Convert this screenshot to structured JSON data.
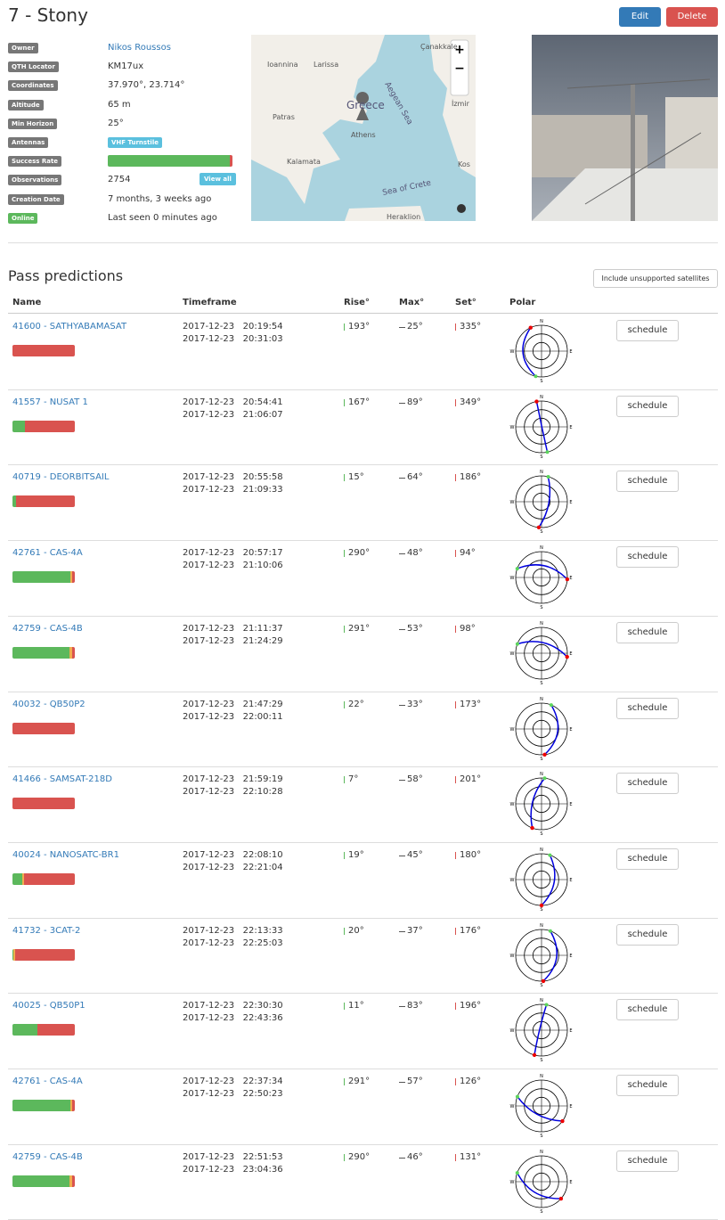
{
  "header": {
    "title": "7 - Stony",
    "edit": "Edit",
    "delete": "Delete"
  },
  "info": [
    {
      "label": "Owner",
      "value": "Nikos Roussos",
      "link": true
    },
    {
      "label": "QTH Locator",
      "value": "KM17ux"
    },
    {
      "label": "Coordinates",
      "value": "37.970°, 23.714°"
    },
    {
      "label": "Altitude",
      "value": "65 m"
    },
    {
      "label": "Min Horizon",
      "value": "25°"
    },
    {
      "label": "Antennas",
      "badge": "VHF Turnstile"
    },
    {
      "label": "Success Rate",
      "rate": [
        98,
        0,
        2
      ]
    },
    {
      "label": "Observations",
      "value": "2754",
      "button": "View all"
    },
    {
      "label": "Creation Date",
      "value": "7 months, 3 weeks ago"
    },
    {
      "label": "Online",
      "value": "Last seen 0 minutes ago",
      "online": true
    }
  ],
  "map": {
    "labels": [
      "Çanakkale",
      "Ioannina",
      "Larissa",
      "Greece",
      "Athens",
      "Aegean Sea",
      "Patras",
      "İzmir",
      "Kalamata",
      "Kos",
      "Sea of Crete",
      "Heraklion"
    ],
    "zoom_in": "+",
    "zoom_out": "−"
  },
  "passes": {
    "title": "Pass predictions",
    "filter": "Include unsupported satellites",
    "columns": [
      "Name",
      "Timeframe",
      "Rise°",
      "Max°",
      "Set°",
      "Polar"
    ],
    "polar_labels": [
      "N",
      "E",
      "S",
      "W"
    ],
    "schedule": "schedule",
    "rows": [
      {
        "name": "41600 - SATHYABAMASAT",
        "start": "2017-12-23   20:19:54",
        "end": "2017-12-23   20:31:03",
        "rise": "193°",
        "max": "25°",
        "set": "335°",
        "rate": [
          0,
          0,
          100
        ]
      },
      {
        "name": "41557 - NUSAT 1",
        "start": "2017-12-23   20:54:41",
        "end": "2017-12-23   21:06:07",
        "rise": "167°",
        "max": "89°",
        "set": "349°",
        "rate": [
          20,
          0,
          80
        ]
      },
      {
        "name": "40719 - DEORBITSAIL",
        "start": "2017-12-23   20:55:58",
        "end": "2017-12-23   21:09:33",
        "rise": "15°",
        "max": "64°",
        "set": "186°",
        "rate": [
          5,
          0,
          95
        ]
      },
      {
        "name": "42761 - CAS-4A",
        "start": "2017-12-23   20:57:17",
        "end": "2017-12-23   21:10:06",
        "rise": "290°",
        "max": "48°",
        "set": "94°",
        "rate": [
          93,
          3,
          4
        ]
      },
      {
        "name": "42759 - CAS-4B",
        "start": "2017-12-23   21:11:37",
        "end": "2017-12-23   21:24:29",
        "rise": "291°",
        "max": "53°",
        "set": "98°",
        "rate": [
          92,
          4,
          4
        ]
      },
      {
        "name": "40032 - QB50P2",
        "start": "2017-12-23   21:47:29",
        "end": "2017-12-23   22:00:11",
        "rise": "22°",
        "max": "33°",
        "set": "173°",
        "rate": [
          0,
          0,
          100
        ]
      },
      {
        "name": "41466 - SAMSAT-218D",
        "start": "2017-12-23   21:59:19",
        "end": "2017-12-23   22:10:28",
        "rise": "7°",
        "max": "58°",
        "set": "201°",
        "rate": [
          0,
          0,
          100
        ]
      },
      {
        "name": "40024 - NANOSATC-BR1",
        "start": "2017-12-23   22:08:10",
        "end": "2017-12-23   22:21:04",
        "rise": "19°",
        "max": "45°",
        "set": "180°",
        "rate": [
          15,
          4,
          81
        ]
      },
      {
        "name": "41732 - 3CAT-2",
        "start": "2017-12-23   22:13:33",
        "end": "2017-12-23   22:25:03",
        "rise": "20°",
        "max": "37°",
        "set": "176°",
        "rate": [
          2,
          3,
          95
        ]
      },
      {
        "name": "40025 - QB50P1",
        "start": "2017-12-23   22:30:30",
        "end": "2017-12-23   22:43:36",
        "rise": "11°",
        "max": "83°",
        "set": "196°",
        "rate": [
          40,
          0,
          60
        ]
      },
      {
        "name": "42761 - CAS-4A",
        "start": "2017-12-23   22:37:34",
        "end": "2017-12-23   22:50:23",
        "rise": "291°",
        "max": "57°",
        "set": "126°",
        "rate": [
          93,
          3,
          4
        ]
      },
      {
        "name": "42759 - CAS-4B",
        "start": "2017-12-23   22:51:53",
        "end": "2017-12-23   23:04:36",
        "rise": "290°",
        "max": "46°",
        "set": "131°",
        "rate": [
          92,
          4,
          4
        ]
      }
    ]
  }
}
